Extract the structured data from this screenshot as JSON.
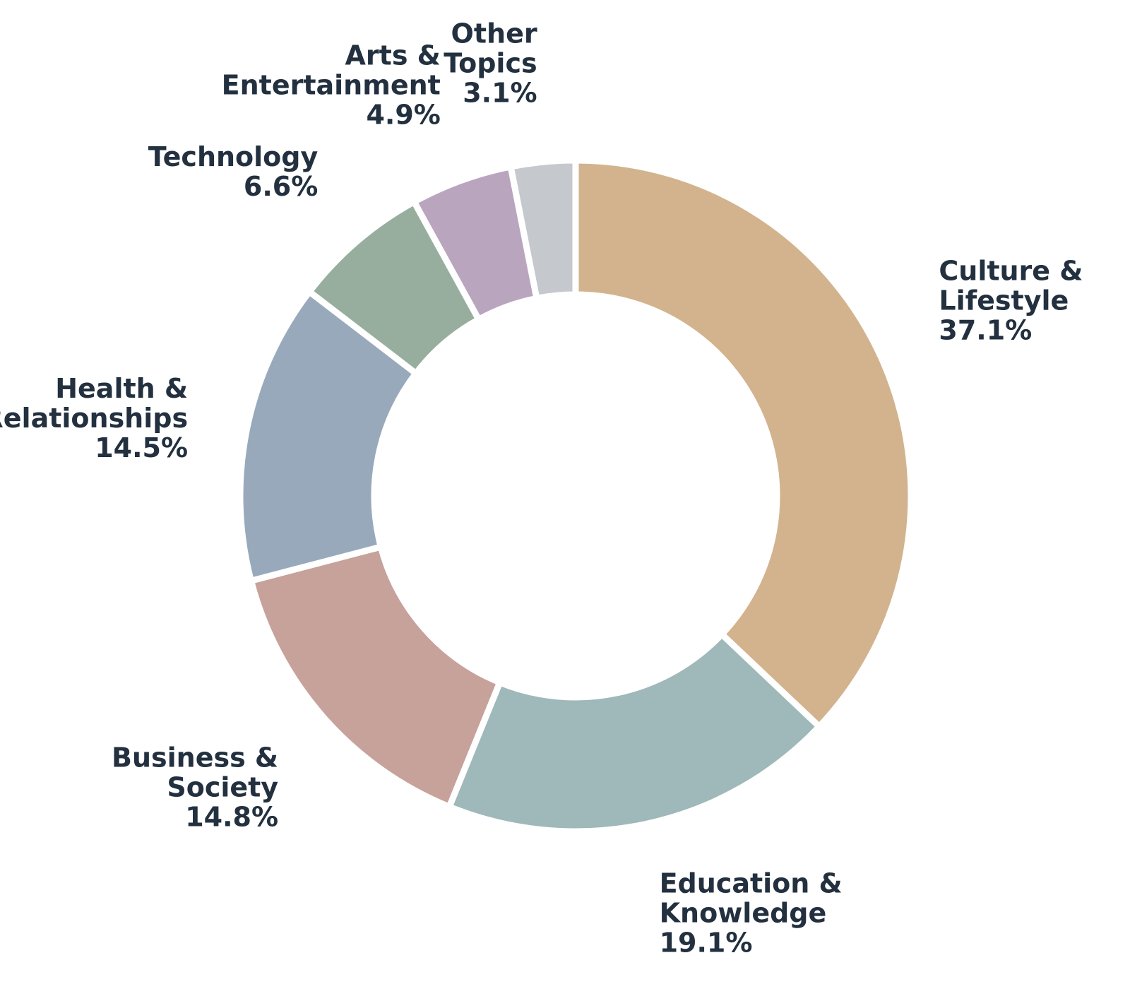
{
  "chart_data": {
    "type": "pie",
    "donut": true,
    "start_angle_deg": 90,
    "direction": "clockwise",
    "slices": [
      {
        "label": [
          "Culture &",
          "Lifestyle"
        ],
        "value": 37.1,
        "value_label": "37.1%",
        "color": "#d2b38d"
      },
      {
        "label": [
          "Education &",
          "Knowledge"
        ],
        "value": 19.1,
        "value_label": "19.1%",
        "color": "#9fb8b9"
      },
      {
        "label": [
          "Business &",
          "Society"
        ],
        "value": 14.8,
        "value_label": "14.8%",
        "color": "#c6a29a"
      },
      {
        "label": [
          "Health &",
          "Relationships"
        ],
        "value": 14.5,
        "value_label": "14.5%",
        "color": "#98a9bb"
      },
      {
        "label": [
          "Technology"
        ],
        "value": 6.6,
        "value_label": "6.6%",
        "color": "#97ae9f"
      },
      {
        "label": [
          "Arts &",
          "Entertainment"
        ],
        "value": 4.9,
        "value_label": "4.9%",
        "color": "#b9a5be"
      },
      {
        "label": [
          "Other",
          "Topics"
        ],
        "value": 3.1,
        "value_label": "3.1%",
        "color": "#c5c8cd"
      }
    ],
    "text_color": "#22303f",
    "separator_color": "#ffffff"
  }
}
